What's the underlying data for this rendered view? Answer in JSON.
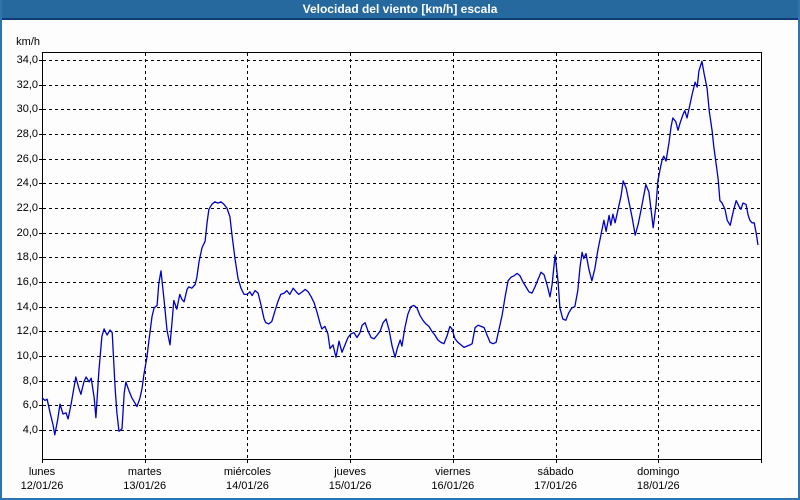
{
  "window": {
    "title": "Velocidad del viento [km/h] escala"
  },
  "colors": {
    "titlebar_bg": "#25699e",
    "titlebar_underline": "#0d3d73",
    "frame": "#2e74ad",
    "plot_border": "#000000",
    "grid": "#000000",
    "line": "#0000c8",
    "background": "#fdfdfd",
    "text": "#000000"
  },
  "chart_data": {
    "type": "line",
    "title": "Velocidad del viento [km/h] escala",
    "ylabel_unit": "km/h",
    "grid": "dashed",
    "legend": "none",
    "ylim": [
      1.65,
      34.65
    ],
    "y_ticks": [
      34,
      32,
      30,
      28,
      26,
      24,
      22,
      20,
      18,
      16,
      14,
      12,
      10,
      8,
      6,
      4
    ],
    "y_tick_decimal_separator": ",",
    "x_range_hours": [
      0,
      168
    ],
    "x_days": [
      {
        "name": "lunes",
        "date": "12/01/26"
      },
      {
        "name": "martes",
        "date": "13/01/26"
      },
      {
        "name": "miércoles",
        "date": "14/01/26"
      },
      {
        "name": "jueves",
        "date": "15/01/26"
      },
      {
        "name": "viernes",
        "date": "16/01/26"
      },
      {
        "name": "sábado",
        "date": "17/01/26"
      },
      {
        "name": "domingo",
        "date": "18/01/26"
      }
    ],
    "series": [
      {
        "name": "Velocidad del viento",
        "color": "#0000c8",
        "points": [
          [
            0,
            6.6
          ],
          [
            0.7,
            6.4
          ],
          [
            1.2,
            6.5
          ],
          [
            1.9,
            5.4
          ],
          [
            2.6,
            4.4
          ],
          [
            3,
            3.6
          ],
          [
            3.7,
            4.9
          ],
          [
            4.2,
            6.1
          ],
          [
            4.9,
            5.3
          ],
          [
            5.6,
            5.4
          ],
          [
            6.1,
            4.9
          ],
          [
            6.8,
            6.1
          ],
          [
            7.5,
            7.5
          ],
          [
            7.9,
            8.3
          ],
          [
            8.6,
            7.4
          ],
          [
            9.1,
            6.9
          ],
          [
            9.8,
            7.9
          ],
          [
            10.3,
            8.3
          ],
          [
            11,
            7.9
          ],
          [
            11.5,
            8.2
          ],
          [
            12.2,
            6.6
          ],
          [
            12.6,
            5
          ],
          [
            13.3,
            8.8
          ],
          [
            14,
            11.6
          ],
          [
            14.5,
            12.2
          ],
          [
            15.2,
            11.7
          ],
          [
            15.9,
            12.1
          ],
          [
            16.4,
            11.9
          ],
          [
            17.1,
            7.3
          ],
          [
            17.5,
            5.4
          ],
          [
            18,
            3.9
          ],
          [
            18.7,
            4.1
          ],
          [
            19.2,
            7
          ],
          [
            19.6,
            7.9
          ],
          [
            20.3,
            7.2
          ],
          [
            21,
            6.6
          ],
          [
            21.7,
            6.2
          ],
          [
            22.2,
            5.9
          ],
          [
            22.9,
            6.6
          ],
          [
            23.4,
            7.4
          ],
          [
            23.8,
            8.5
          ],
          [
            24.5,
            9.9
          ],
          [
            25,
            11.3
          ],
          [
            25.7,
            13.2
          ],
          [
            26.2,
            13.9
          ],
          [
            26.9,
            14.1
          ],
          [
            27.3,
            15.9
          ],
          [
            27.8,
            16.9
          ],
          [
            28.5,
            14.6
          ],
          [
            29.2,
            12.1
          ],
          [
            29.9,
            10.9
          ],
          [
            30.4,
            12.8
          ],
          [
            30.8,
            14.5
          ],
          [
            31.5,
            13.8
          ],
          [
            32.2,
            15
          ],
          [
            32.7,
            14.6
          ],
          [
            33.2,
            14.4
          ],
          [
            33.9,
            15.4
          ],
          [
            34.3,
            15.6
          ],
          [
            35,
            15.5
          ],
          [
            35.8,
            15.8
          ],
          [
            36.2,
            16.4
          ],
          [
            36.7,
            17.7
          ],
          [
            37.4,
            18.8
          ],
          [
            38.1,
            19.3
          ],
          [
            38.6,
            20.9
          ],
          [
            39,
            21.9
          ],
          [
            39.7,
            22.3
          ],
          [
            40.4,
            22.5
          ],
          [
            41.1,
            22.4
          ],
          [
            41.8,
            22.5
          ],
          [
            42.5,
            22.3
          ],
          [
            43.2,
            22
          ],
          [
            43.9,
            21.3
          ],
          [
            44.4,
            19.8
          ],
          [
            45.1,
            17.9
          ],
          [
            45.8,
            16.3
          ],
          [
            46.5,
            15.5
          ],
          [
            47.2,
            15
          ],
          [
            47.9,
            15
          ],
          [
            48.6,
            15.2
          ],
          [
            49.1,
            14.9
          ],
          [
            49.8,
            15.3
          ],
          [
            50.5,
            15.1
          ],
          [
            51.2,
            14.1
          ],
          [
            51.9,
            13
          ],
          [
            52.3,
            12.7
          ],
          [
            53,
            12.6
          ],
          [
            53.7,
            12.8
          ],
          [
            54.4,
            13.6
          ],
          [
            55.1,
            14.4
          ],
          [
            55.8,
            15
          ],
          [
            56.6,
            15.1
          ],
          [
            57.2,
            15.3
          ],
          [
            57.9,
            15
          ],
          [
            58.7,
            15.5
          ],
          [
            59.4,
            15.2
          ],
          [
            60,
            15
          ],
          [
            60.8,
            15.2
          ],
          [
            61.5,
            15.4
          ],
          [
            62.2,
            15.2
          ],
          [
            62.9,
            14.8
          ],
          [
            63.6,
            14.3
          ],
          [
            64.3,
            13.5
          ],
          [
            65,
            12.6
          ],
          [
            65.4,
            12.2
          ],
          [
            66.1,
            12.4
          ],
          [
            66.8,
            11.8
          ],
          [
            67.3,
            10.6
          ],
          [
            68,
            10.9
          ],
          [
            68.7,
            9.9
          ],
          [
            69.4,
            11.2
          ],
          [
            70.1,
            10.3
          ],
          [
            70.8,
            10.9
          ],
          [
            71.5,
            11.5
          ],
          [
            72.2,
            11.8
          ],
          [
            72.9,
            11.9
          ],
          [
            73.6,
            11.5
          ],
          [
            74.3,
            11.9
          ],
          [
            74.8,
            12.5
          ],
          [
            75.5,
            12.7
          ],
          [
            76.2,
            12
          ],
          [
            76.9,
            11.5
          ],
          [
            77.6,
            11.4
          ],
          [
            78.3,
            11.7
          ],
          [
            79,
            12
          ],
          [
            79.7,
            12.7
          ],
          [
            80.4,
            13
          ],
          [
            81.1,
            12.1
          ],
          [
            81.8,
            10.8
          ],
          [
            82.5,
            9.9
          ],
          [
            83,
            10.6
          ],
          [
            83.7,
            11.3
          ],
          [
            84.1,
            10.8
          ],
          [
            84.8,
            12.3
          ],
          [
            85.5,
            13.4
          ],
          [
            86.2,
            14
          ],
          [
            86.9,
            14.1
          ],
          [
            87.6,
            13.9
          ],
          [
            88.3,
            13.3
          ],
          [
            89,
            12.9
          ],
          [
            89.7,
            12.6
          ],
          [
            90.4,
            12.4
          ],
          [
            91.1,
            12
          ],
          [
            91.8,
            11.7
          ],
          [
            92.5,
            11.3
          ],
          [
            93.2,
            11.1
          ],
          [
            93.9,
            11
          ],
          [
            94.6,
            11.6
          ],
          [
            95.3,
            12.4
          ],
          [
            95.8,
            12.2
          ],
          [
            96.5,
            11.4
          ],
          [
            97.2,
            11.1
          ],
          [
            97.9,
            10.9
          ],
          [
            98.6,
            10.7
          ],
          [
            99.3,
            10.8
          ],
          [
            100,
            10.9
          ],
          [
            100.5,
            11
          ],
          [
            101.2,
            12.3
          ],
          [
            101.9,
            12.5
          ],
          [
            102.6,
            12.4
          ],
          [
            103.3,
            12.3
          ],
          [
            104,
            11.7
          ],
          [
            104.7,
            11.1
          ],
          [
            105.4,
            11
          ],
          [
            106.1,
            11.1
          ],
          [
            106.8,
            12.2
          ],
          [
            107.5,
            13.3
          ],
          [
            108.2,
            14.8
          ],
          [
            108.9,
            16.1
          ],
          [
            109.6,
            16.4
          ],
          [
            110.3,
            16.5
          ],
          [
            111,
            16.7
          ],
          [
            111.7,
            16.5
          ],
          [
            112.4,
            16
          ],
          [
            113.1,
            15.6
          ],
          [
            113.8,
            15.2
          ],
          [
            114.5,
            15.1
          ],
          [
            115.2,
            15.6
          ],
          [
            115.9,
            16.2
          ],
          [
            116.6,
            16.8
          ],
          [
            117.3,
            16.6
          ],
          [
            118,
            15.8
          ],
          [
            118.7,
            14.8
          ],
          [
            119.2,
            15.8
          ],
          [
            119.9,
            18.2
          ],
          [
            120.6,
            16
          ],
          [
            121,
            13.9
          ],
          [
            121.7,
            13
          ],
          [
            122.4,
            12.9
          ],
          [
            123.1,
            13.5
          ],
          [
            123.8,
            13.9
          ],
          [
            124.5,
            14
          ],
          [
            125.2,
            15.3
          ],
          [
            125.7,
            17.2
          ],
          [
            126.2,
            18.4
          ],
          [
            126.6,
            17.9
          ],
          [
            127.1,
            18.3
          ],
          [
            127.8,
            17
          ],
          [
            128.5,
            16.1
          ],
          [
            129.2,
            17.1
          ],
          [
            129.9,
            18.6
          ],
          [
            130.6,
            19.8
          ],
          [
            131.3,
            21
          ],
          [
            131.8,
            20.1
          ],
          [
            132.5,
            21.4
          ],
          [
            132.9,
            20.6
          ],
          [
            133.4,
            21.5
          ],
          [
            133.9,
            20.8
          ],
          [
            134.6,
            21.9
          ],
          [
            135.3,
            23
          ],
          [
            135.8,
            24.2
          ],
          [
            136.5,
            23.6
          ],
          [
            137.2,
            22.4
          ],
          [
            137.9,
            21.2
          ],
          [
            138.6,
            19.8
          ],
          [
            139.3,
            20.7
          ],
          [
            140,
            21.9
          ],
          [
            140.7,
            23.2
          ],
          [
            141.1,
            23.9
          ],
          [
            141.8,
            23.3
          ],
          [
            142.3,
            21.9
          ],
          [
            142.8,
            20.4
          ],
          [
            143.5,
            22.3
          ],
          [
            143.9,
            24.2
          ],
          [
            144.4,
            25.1
          ],
          [
            144.9,
            25.9
          ],
          [
            145.3,
            26.2
          ],
          [
            145.8,
            25.8
          ],
          [
            146.5,
            27.3
          ],
          [
            147,
            28.6
          ],
          [
            147.4,
            29.3
          ],
          [
            148.1,
            29
          ],
          [
            148.6,
            28.3
          ],
          [
            149.1,
            28.9
          ],
          [
            149.8,
            29.6
          ],
          [
            150.2,
            29.9
          ],
          [
            150.7,
            29.3
          ],
          [
            151.4,
            30.4
          ],
          [
            151.9,
            31.2
          ],
          [
            152.6,
            32.2
          ],
          [
            153.1,
            31.8
          ],
          [
            153.5,
            33.1
          ],
          [
            154.2,
            33.9
          ],
          [
            154.7,
            32.9
          ],
          [
            155.4,
            31.7
          ],
          [
            155.9,
            29.9
          ],
          [
            156.6,
            28.2
          ],
          [
            157,
            26.9
          ],
          [
            157.5,
            25.6
          ],
          [
            158,
            24.3
          ],
          [
            158.4,
            22.6
          ],
          [
            158.9,
            22.4
          ],
          [
            159.6,
            21.9
          ],
          [
            160.1,
            21
          ],
          [
            160.8,
            20.6
          ],
          [
            161.5,
            21.7
          ],
          [
            162.2,
            22.6
          ],
          [
            162.9,
            22.1
          ],
          [
            163.3,
            21.9
          ],
          [
            163.8,
            22.4
          ],
          [
            164.5,
            22.3
          ],
          [
            165,
            21.4
          ],
          [
            165.4,
            21
          ],
          [
            165.9,
            20.8
          ],
          [
            166.4,
            20.8
          ],
          [
            166.9,
            19.9
          ],
          [
            167.3,
            19
          ]
        ]
      }
    ]
  }
}
